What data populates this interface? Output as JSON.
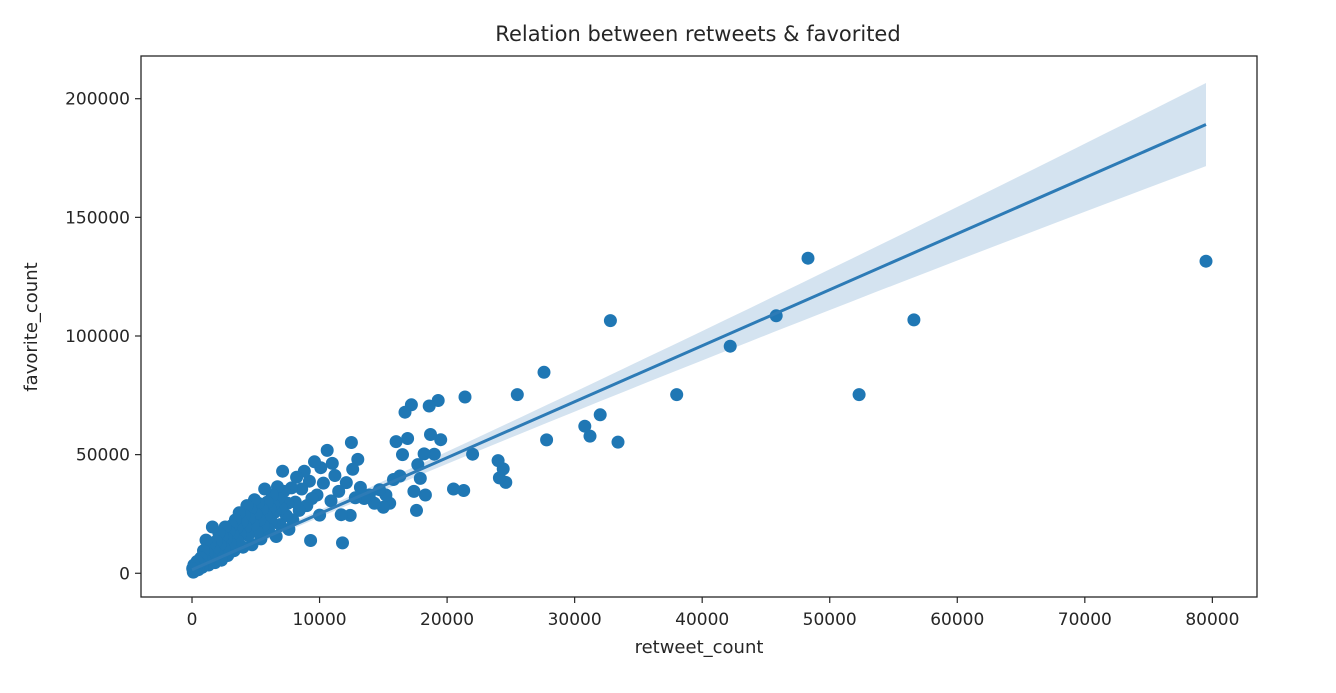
{
  "chart_data": {
    "type": "scatter",
    "title": "Relation between retweets & favorited",
    "xlabel": "retweet_count",
    "ylabel": "favorite_count",
    "xlim": [
      -4000,
      83500
    ],
    "ylim": [
      -10000,
      218000
    ],
    "xticks": [
      0,
      10000,
      20000,
      30000,
      40000,
      50000,
      60000,
      70000,
      80000
    ],
    "yticks": [
      0,
      50000,
      100000,
      150000,
      200000
    ],
    "grid": false,
    "legend": "none",
    "colors": {
      "points": "#1f77b4",
      "regression_line": "#2d7bb6",
      "confidence_band": "#c9dcec",
      "axes": "#262626"
    },
    "regression": {
      "x_range": [
        0,
        79500
      ],
      "intercept": 1500,
      "slope": 2.36,
      "ci_upper_at_max": 208000,
      "ci_lower_at_max": 173000
    },
    "points": [
      [
        79500,
        131500
      ],
      [
        56600,
        106800
      ],
      [
        52300,
        75300
      ],
      [
        48300,
        132800
      ],
      [
        45800,
        108500
      ],
      [
        42200,
        95700
      ],
      [
        38000,
        75300
      ],
      [
        33400,
        55300
      ],
      [
        32800,
        106500
      ],
      [
        32000,
        66800
      ],
      [
        31200,
        57800
      ],
      [
        30800,
        62000
      ],
      [
        27800,
        56200
      ],
      [
        27600,
        84700
      ],
      [
        25500,
        75300
      ],
      [
        24600,
        38300
      ],
      [
        24400,
        44000
      ],
      [
        24100,
        40200
      ],
      [
        24000,
        47500
      ],
      [
        22000,
        50200
      ],
      [
        21400,
        74300
      ],
      [
        21300,
        34900
      ],
      [
        20500,
        35500
      ],
      [
        19500,
        56300
      ],
      [
        19300,
        72800
      ],
      [
        19000,
        50200
      ],
      [
        18700,
        58500
      ],
      [
        18600,
        70500
      ],
      [
        18300,
        33000
      ],
      [
        18200,
        50300
      ],
      [
        17900,
        40000
      ],
      [
        17700,
        45800
      ],
      [
        17600,
        26500
      ],
      [
        17400,
        34500
      ],
      [
        17200,
        71000
      ],
      [
        16900,
        56800
      ],
      [
        16700,
        67900
      ],
      [
        16500,
        50000
      ],
      [
        16300,
        41000
      ],
      [
        16000,
        55500
      ],
      [
        15800,
        39500
      ],
      [
        15500,
        29500
      ],
      [
        15200,
        33000
      ],
      [
        15000,
        27800
      ],
      [
        14700,
        35200
      ],
      [
        14300,
        29500
      ],
      [
        13900,
        33000
      ],
      [
        13500,
        31500
      ],
      [
        13200,
        36200
      ],
      [
        13000,
        48000
      ],
      [
        12800,
        31800
      ],
      [
        12600,
        43800
      ],
      [
        12500,
        55100
      ],
      [
        12400,
        24400
      ],
      [
        12100,
        38200
      ],
      [
        11800,
        12800
      ],
      [
        11700,
        24700
      ],
      [
        11500,
        34500
      ],
      [
        11200,
        41200
      ],
      [
        11000,
        46300
      ],
      [
        10900,
        30500
      ],
      [
        10600,
        51800
      ],
      [
        10300,
        38000
      ],
      [
        10100,
        44500
      ],
      [
        10000,
        24500
      ],
      [
        9800,
        33000
      ],
      [
        9600,
        47000
      ],
      [
        9400,
        31500
      ],
      [
        9300,
        13800
      ],
      [
        9200,
        38800
      ],
      [
        9000,
        28500
      ],
      [
        8800,
        43000
      ],
      [
        8600,
        35500
      ],
      [
        8400,
        26500
      ],
      [
        8200,
        40500
      ],
      [
        8100,
        30000
      ],
      [
        7900,
        22500
      ],
      [
        7800,
        36000
      ],
      [
        7600,
        18500
      ],
      [
        7500,
        29500
      ],
      [
        7400,
        24300
      ],
      [
        7200,
        34500
      ],
      [
        7100,
        43000
      ],
      [
        7000,
        27500
      ],
      [
        6900,
        20500
      ],
      [
        6800,
        31500
      ],
      [
        6700,
        36500
      ],
      [
        6600,
        15500
      ],
      [
        6500,
        25800
      ],
      [
        6400,
        29000
      ],
      [
        6300,
        33000
      ],
      [
        6200,
        22000
      ],
      [
        6100,
        27500
      ],
      [
        6000,
        18500
      ],
      [
        5900,
        30000
      ],
      [
        5800,
        24500
      ],
      [
        5700,
        35500
      ],
      [
        5600,
        20000
      ],
      [
        5500,
        27000
      ],
      [
        5400,
        14500
      ],
      [
        5300,
        22500
      ],
      [
        5200,
        29500
      ],
      [
        5100,
        17500
      ],
      [
        5000,
        25000
      ],
      [
        4900,
        31000
      ],
      [
        4800,
        20500
      ],
      [
        4700,
        12000
      ],
      [
        4600,
        27000
      ],
      [
        4500,
        23000
      ],
      [
        4400,
        16000
      ],
      [
        4300,
        28500
      ],
      [
        4200,
        19500
      ],
      [
        4100,
        24500
      ],
      [
        4000,
        11000
      ],
      [
        3900,
        21500
      ],
      [
        3800,
        16500
      ],
      [
        3700,
        25500
      ],
      [
        3600,
        13500
      ],
      [
        3500,
        19000
      ],
      [
        3400,
        22500
      ],
      [
        3300,
        9500
      ],
      [
        3200,
        16500
      ],
      [
        3100,
        20000
      ],
      [
        3000,
        12500
      ],
      [
        2900,
        17500
      ],
      [
        2800,
        7500
      ],
      [
        2700,
        14500
      ],
      [
        2600,
        19500
      ],
      [
        2500,
        10500
      ],
      [
        2400,
        15500
      ],
      [
        2300,
        5500
      ],
      [
        2200,
        12000
      ],
      [
        2100,
        17000
      ],
      [
        2000,
        8000
      ],
      [
        1900,
        13500
      ],
      [
        1800,
        4500
      ],
      [
        1700,
        10000
      ],
      [
        1600,
        19500
      ],
      [
        1500,
        6500
      ],
      [
        1400,
        12500
      ],
      [
        1300,
        3500
      ],
      [
        1200,
        8500
      ],
      [
        1100,
        14000
      ],
      [
        1000,
        5500
      ],
      [
        900,
        9500
      ],
      [
        800,
        2500
      ],
      [
        700,
        6500
      ],
      [
        600,
        4000
      ],
      [
        500,
        1500
      ],
      [
        400,
        5000
      ],
      [
        300,
        2500
      ],
      [
        200,
        1000
      ],
      [
        150,
        3500
      ],
      [
        100,
        500
      ],
      [
        50,
        2000
      ]
    ]
  }
}
